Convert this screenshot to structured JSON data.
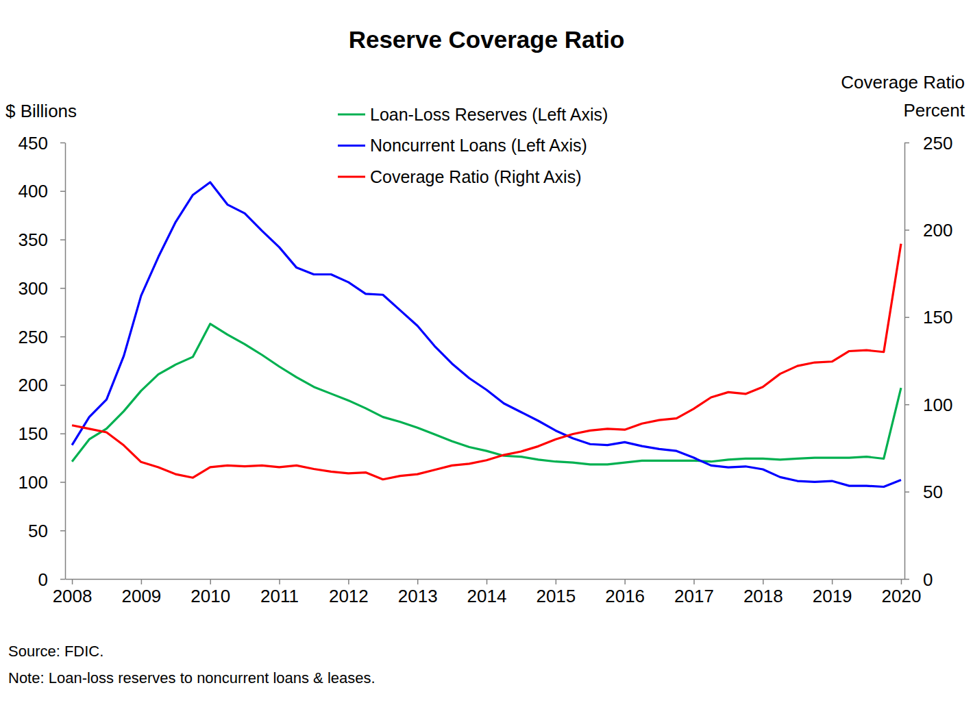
{
  "chart_data": {
    "type": "line",
    "title": "Reserve Coverage Ratio",
    "y_label": "$ Billions",
    "y2_label": [
      "Coverage Ratio",
      "Percent"
    ],
    "annotations": [
      "Source: FDIC.",
      "Note: Loan-loss reserves to noncurrent loans & leases."
    ],
    "legend": "top",
    "x": [
      2008,
      2008.25,
      2008.5,
      2008.75,
      2009,
      2009.25,
      2009.5,
      2009.75,
      2010,
      2010.25,
      2010.5,
      2010.75,
      2011,
      2011.25,
      2011.5,
      2011.75,
      2012,
      2012.25,
      2012.5,
      2012.75,
      2013,
      2013.25,
      2013.5,
      2013.75,
      2014,
      2014.25,
      2014.5,
      2014.75,
      2015,
      2015.25,
      2015.5,
      2015.75,
      2016,
      2016.25,
      2016.5,
      2016.75,
      2017,
      2017.25,
      2017.5,
      2017.75,
      2018,
      2018.25,
      2018.5,
      2018.75,
      2019,
      2019.25,
      2019.5,
      2019.75,
      2020
    ],
    "xlim": [
      2007.9,
      2020.05
    ],
    "xticks": [
      2008,
      2009,
      2010,
      2011,
      2012,
      2013,
      2014,
      2015,
      2016,
      2017,
      2018,
      2019,
      2020
    ],
    "ylim": [
      0,
      450
    ],
    "yticks": [
      0,
      50,
      100,
      150,
      200,
      250,
      300,
      350,
      400,
      450
    ],
    "y2lim": [
      0,
      250
    ],
    "y2ticks": [
      0,
      50,
      100,
      150,
      200,
      250
    ],
    "series": [
      {
        "name": "Loan-Loss Reserves (Left Axis)",
        "color": "#00b050",
        "axis": "y",
        "values": [
          121,
          144,
          155,
          173,
          194,
          211,
          221,
          229,
          263,
          252,
          242,
          231,
          219,
          208,
          198,
          191,
          184,
          176,
          167,
          162,
          156,
          149,
          142,
          136,
          132,
          127,
          126,
          123,
          121,
          120,
          118,
          118,
          120,
          122,
          122,
          122,
          122,
          121,
          123,
          124,
          124,
          123,
          124,
          125,
          125,
          125,
          126,
          124,
          197
        ]
      },
      {
        "name": "Noncurrent Loans (Left Axis)",
        "color": "#0000ff",
        "axis": "y",
        "values": [
          138,
          167,
          185,
          230,
          292,
          332,
          368,
          396,
          409,
          386,
          377,
          359,
          342,
          321,
          314,
          314,
          306,
          294,
          293,
          277,
          261,
          240,
          222,
          207,
          195,
          181,
          172,
          163,
          153,
          145,
          139,
          138,
          141,
          137,
          134,
          132,
          125,
          117,
          115,
          116,
          113,
          105,
          101,
          100,
          101,
          96,
          96,
          95,
          102
        ]
      },
      {
        "name": "Coverage Ratio (Right Axis)",
        "color": "#ff0000",
        "axis": "y2",
        "values": [
          88,
          86,
          84,
          76.5,
          67,
          64,
          60,
          58,
          64,
          65,
          64.5,
          65,
          64,
          65,
          63,
          61.5,
          60.5,
          61,
          57,
          59,
          60,
          62.5,
          65,
          66,
          68,
          71,
          73,
          76,
          80,
          83,
          85,
          86,
          85.5,
          89,
          91,
          92,
          97.5,
          104,
          107,
          106,
          110,
          117.5,
          122,
          124,
          124.5,
          130.5,
          131,
          130,
          192
        ]
      }
    ]
  }
}
